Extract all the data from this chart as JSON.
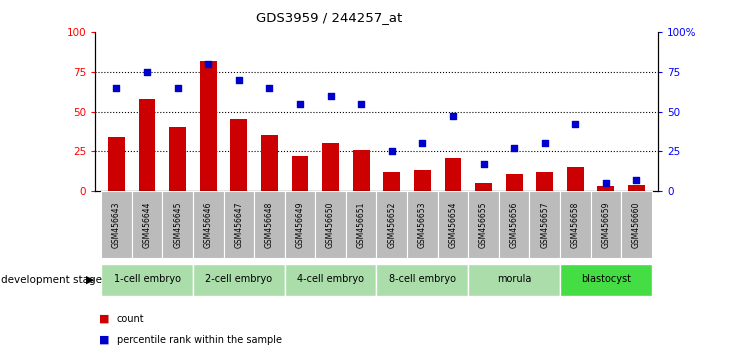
{
  "title": "GDS3959 / 244257_at",
  "samples": [
    "GSM456643",
    "GSM456644",
    "GSM456645",
    "GSM456646",
    "GSM456647",
    "GSM456648",
    "GSM456649",
    "GSM456650",
    "GSM456651",
    "GSM456652",
    "GSM456653",
    "GSM456654",
    "GSM456655",
    "GSM456656",
    "GSM456657",
    "GSM456658",
    "GSM456659",
    "GSM456660"
  ],
  "bar_values": [
    34,
    58,
    40,
    82,
    45,
    35,
    22,
    30,
    26,
    12,
    13,
    21,
    5,
    11,
    12,
    15,
    3,
    4
  ],
  "pct_values": [
    65,
    75,
    65,
    80,
    70,
    65,
    55,
    60,
    55,
    25,
    30,
    47,
    17,
    27,
    30,
    42,
    5,
    7
  ],
  "stages": [
    {
      "label": "1-cell embryo",
      "start": 0,
      "end": 3
    },
    {
      "label": "2-cell embryo",
      "start": 3,
      "end": 6
    },
    {
      "label": "4-cell embryo",
      "start": 6,
      "end": 9
    },
    {
      "label": "8-cell embryo",
      "start": 9,
      "end": 12
    },
    {
      "label": "morula",
      "start": 12,
      "end": 15
    },
    {
      "label": "blastocyst",
      "start": 15,
      "end": 18
    }
  ],
  "bar_color": "#cc0000",
  "pct_color": "#0000cc",
  "ylim": [
    0,
    100
  ],
  "stage_color_light": "#aaddaa",
  "stage_color_bright": "#44dd44",
  "sample_bg_color": "#bbbbbb"
}
